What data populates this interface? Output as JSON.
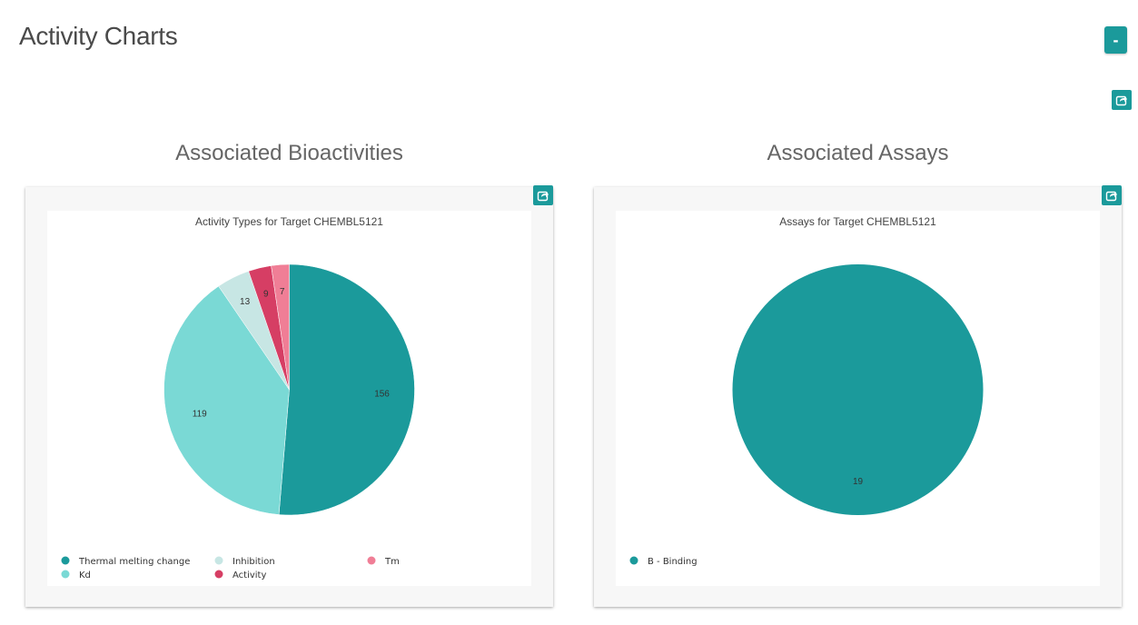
{
  "page": {
    "title": "Activity Charts",
    "collapse_label": "-"
  },
  "colors": {
    "accent": "#1b9a9b"
  },
  "icons": {
    "share": "share-icon"
  },
  "sections": [
    {
      "title": "Associated Bioactivities"
    },
    {
      "title": "Associated Assays"
    }
  ],
  "chart_data": [
    {
      "type": "pie",
      "title": "Activity Types for Target CHEMBL5121",
      "categories": [
        "Thermal melting change",
        "Kd",
        "Inhibition",
        "Activity",
        "Tm"
      ],
      "values": [
        156,
        119,
        13,
        9,
        7
      ],
      "colors": [
        "#1b9a9b",
        "#7ad9d5",
        "#c7e6e4",
        "#d63e64",
        "#f07e96"
      ],
      "legend_placement": "bottom"
    },
    {
      "type": "pie",
      "title": "Assays for Target CHEMBL5121",
      "categories": [
        "B - Binding"
      ],
      "values": [
        19
      ],
      "colors": [
        "#1b9a9b"
      ],
      "legend_placement": "bottom"
    }
  ]
}
